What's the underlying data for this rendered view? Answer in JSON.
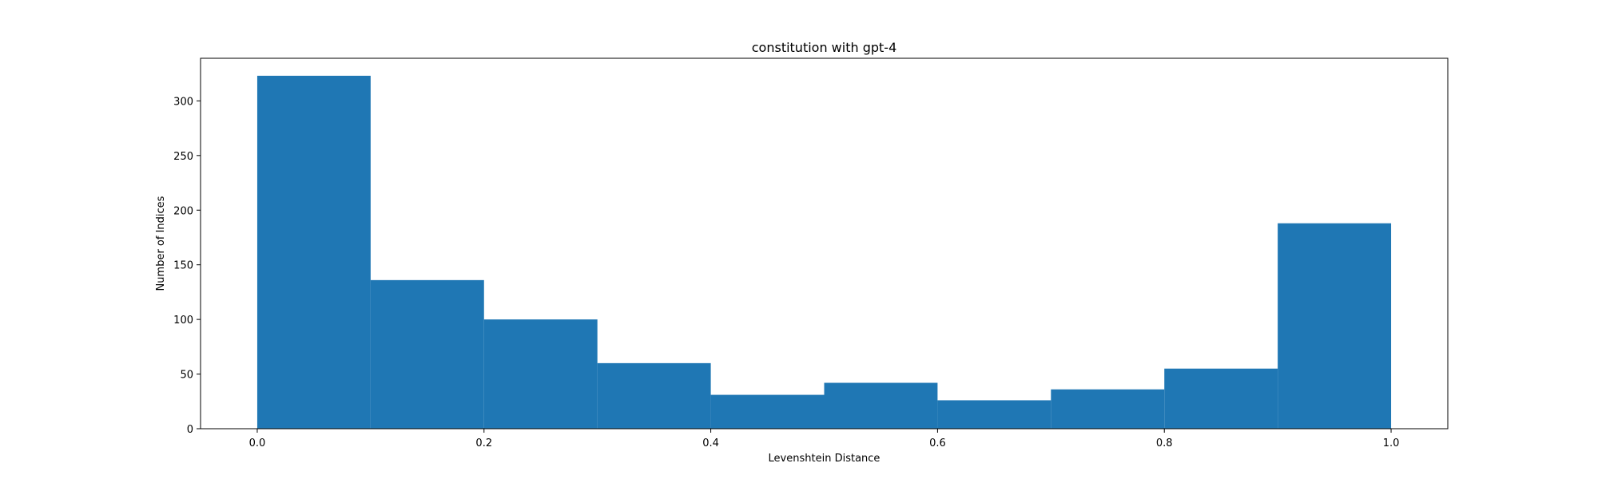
{
  "chart_data": {
    "type": "bar",
    "title": "constitution with gpt-4",
    "xlabel": "Levenshtein Distance",
    "ylabel": "Number of Indices",
    "bins": [
      {
        "x0": 0.0,
        "x1": 0.1,
        "count": 323
      },
      {
        "x0": 0.1,
        "x1": 0.2,
        "count": 136
      },
      {
        "x0": 0.2,
        "x1": 0.3,
        "count": 100
      },
      {
        "x0": 0.3,
        "x1": 0.4,
        "count": 60
      },
      {
        "x0": 0.4,
        "x1": 0.5,
        "count": 31
      },
      {
        "x0": 0.5,
        "x1": 0.6,
        "count": 42
      },
      {
        "x0": 0.6,
        "x1": 0.7,
        "count": 26
      },
      {
        "x0": 0.7,
        "x1": 0.8,
        "count": 36
      },
      {
        "x0": 0.8,
        "x1": 0.9,
        "count": 55
      },
      {
        "x0": 0.9,
        "x1": 1.0,
        "count": 188
      }
    ],
    "xlim": [
      -0.05,
      1.05
    ],
    "ylim": [
      0,
      339
    ],
    "xticks": [
      0.0,
      0.2,
      0.4,
      0.6,
      0.8,
      1.0
    ],
    "xtick_labels": [
      "0.0",
      "0.2",
      "0.4",
      "0.6",
      "0.8",
      "1.0"
    ],
    "yticks": [
      0,
      50,
      100,
      150,
      200,
      250,
      300
    ],
    "ytick_labels": [
      "0",
      "50",
      "100",
      "150",
      "200",
      "250",
      "300"
    ],
    "bar_color": "#1f77b4",
    "grid": false,
    "legend": false
  }
}
